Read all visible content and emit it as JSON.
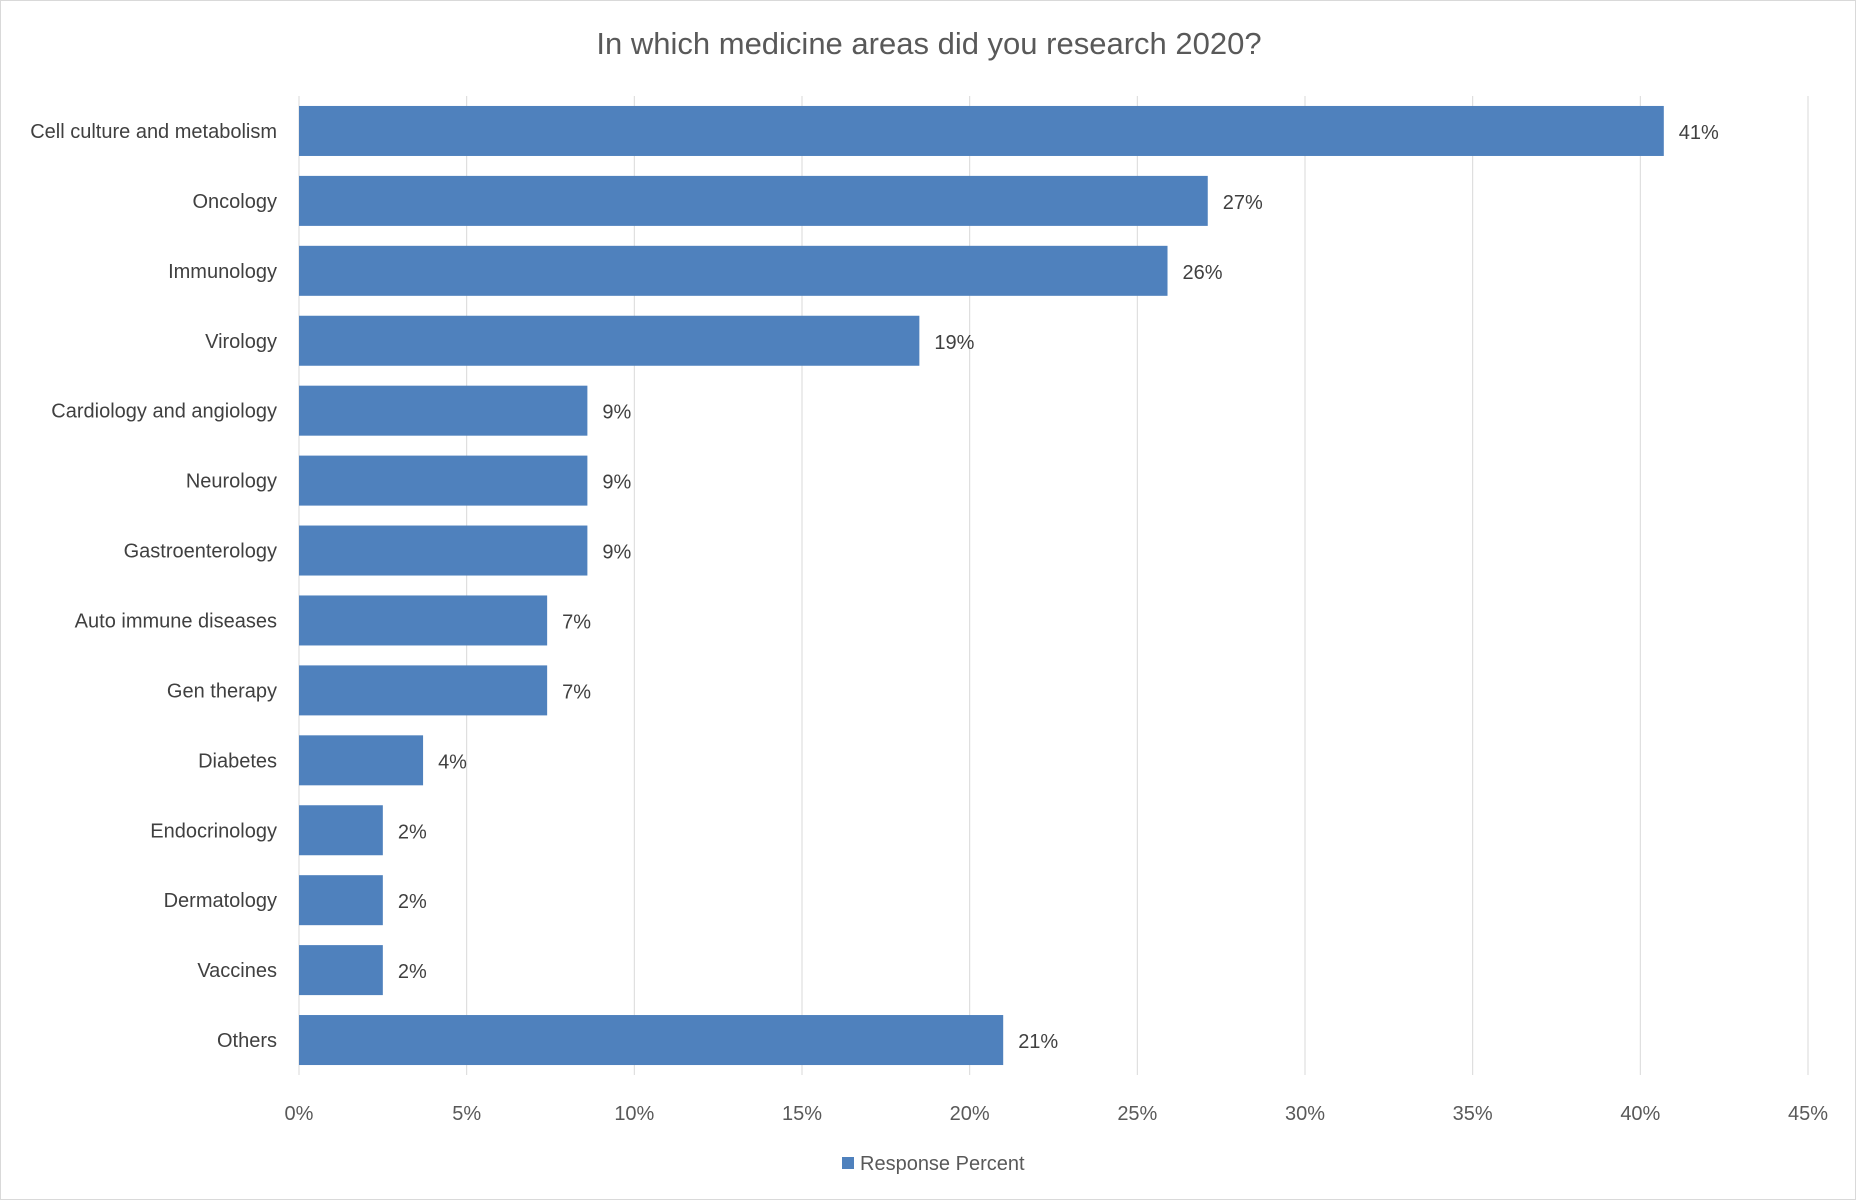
{
  "chart_data": {
    "type": "bar",
    "orientation": "horizontal",
    "title": "In which medicine areas did you research 2020?",
    "xlabel": "",
    "ylabel": "",
    "categories": [
      "Cell culture and metabolism",
      "Oncology",
      "Immunology",
      "Virology",
      "Cardiology and angiology",
      "Neurology",
      "Gastroenterology",
      "Auto immune diseases",
      "Gen therapy",
      "Diabetes",
      "Endocrinology",
      "Dermatology",
      "Vaccines",
      "Others"
    ],
    "series": [
      {
        "name": "Response Percent",
        "color": "#4f81bd",
        "values": [
          40.7,
          27.1,
          25.9,
          18.5,
          8.6,
          8.6,
          8.6,
          7.4,
          7.4,
          3.7,
          2.5,
          2.5,
          2.5,
          21.0
        ],
        "data_labels": [
          "41%",
          "27%",
          "26%",
          "19%",
          "9%",
          "9%",
          "9%",
          "7%",
          "7%",
          "4%",
          "2%",
          "2%",
          "2%",
          "21%"
        ]
      }
    ],
    "xlim": [
      0,
      45
    ],
    "xticks": [
      0,
      5,
      10,
      15,
      20,
      25,
      30,
      35,
      40,
      45
    ],
    "xtick_labels": [
      "0%",
      "5%",
      "10%",
      "15%",
      "20%",
      "25%",
      "30%",
      "35%",
      "40%",
      "45%"
    ],
    "grid": "vertical",
    "legend_position": "bottom",
    "gridline_color": "#d9d9d9",
    "text_color": "#404040"
  }
}
